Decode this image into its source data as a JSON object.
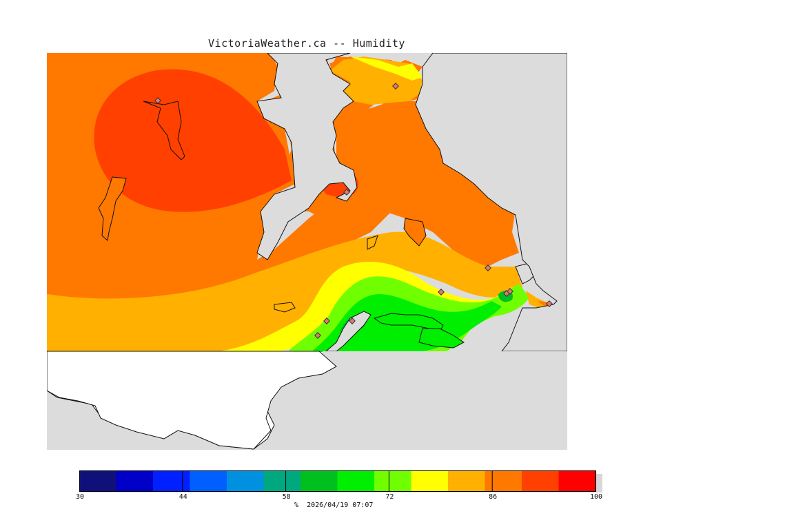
{
  "title": "VictoriaWeather.ca -- Humidity",
  "colors": {
    "water": "#dcdcdc",
    "outside_land": "#ffffff",
    "coast": "#111111",
    "station": "#e07a7a"
  },
  "legend": {
    "min": 30,
    "max": 100,
    "bands": [
      {
        "from": 30,
        "color": "#10107a"
      },
      {
        "from": 35,
        "color": "#0000c8"
      },
      {
        "from": 40,
        "color": "#0020ff"
      },
      {
        "from": 45,
        "color": "#0060ff"
      },
      {
        "from": 50,
        "color": "#0090e0"
      },
      {
        "from": 55,
        "color": "#00a880"
      },
      {
        "from": 60,
        "color": "#00c020"
      },
      {
        "from": 65,
        "color": "#00ee00"
      },
      {
        "from": 70,
        "color": "#70ff00"
      },
      {
        "from": 75,
        "color": "#ffff00"
      },
      {
        "from": 80,
        "color": "#ffb000"
      },
      {
        "from": 85,
        "color": "#ff7800"
      },
      {
        "from": 90,
        "color": "#ff4000"
      },
      {
        "from": 95,
        "color": "#ff0000"
      }
    ],
    "ticks": [
      {
        "value": 30,
        "label": "30"
      },
      {
        "value": 44,
        "label": "44"
      },
      {
        "value": 58,
        "label": "58"
      },
      {
        "value": 72,
        "label": "72"
      },
      {
        "value": 86,
        "label": "86"
      },
      {
        "value": 100,
        "label": "100"
      }
    ],
    "unit": "%",
    "timestamp": "2026/04/19 07:07"
  }
}
